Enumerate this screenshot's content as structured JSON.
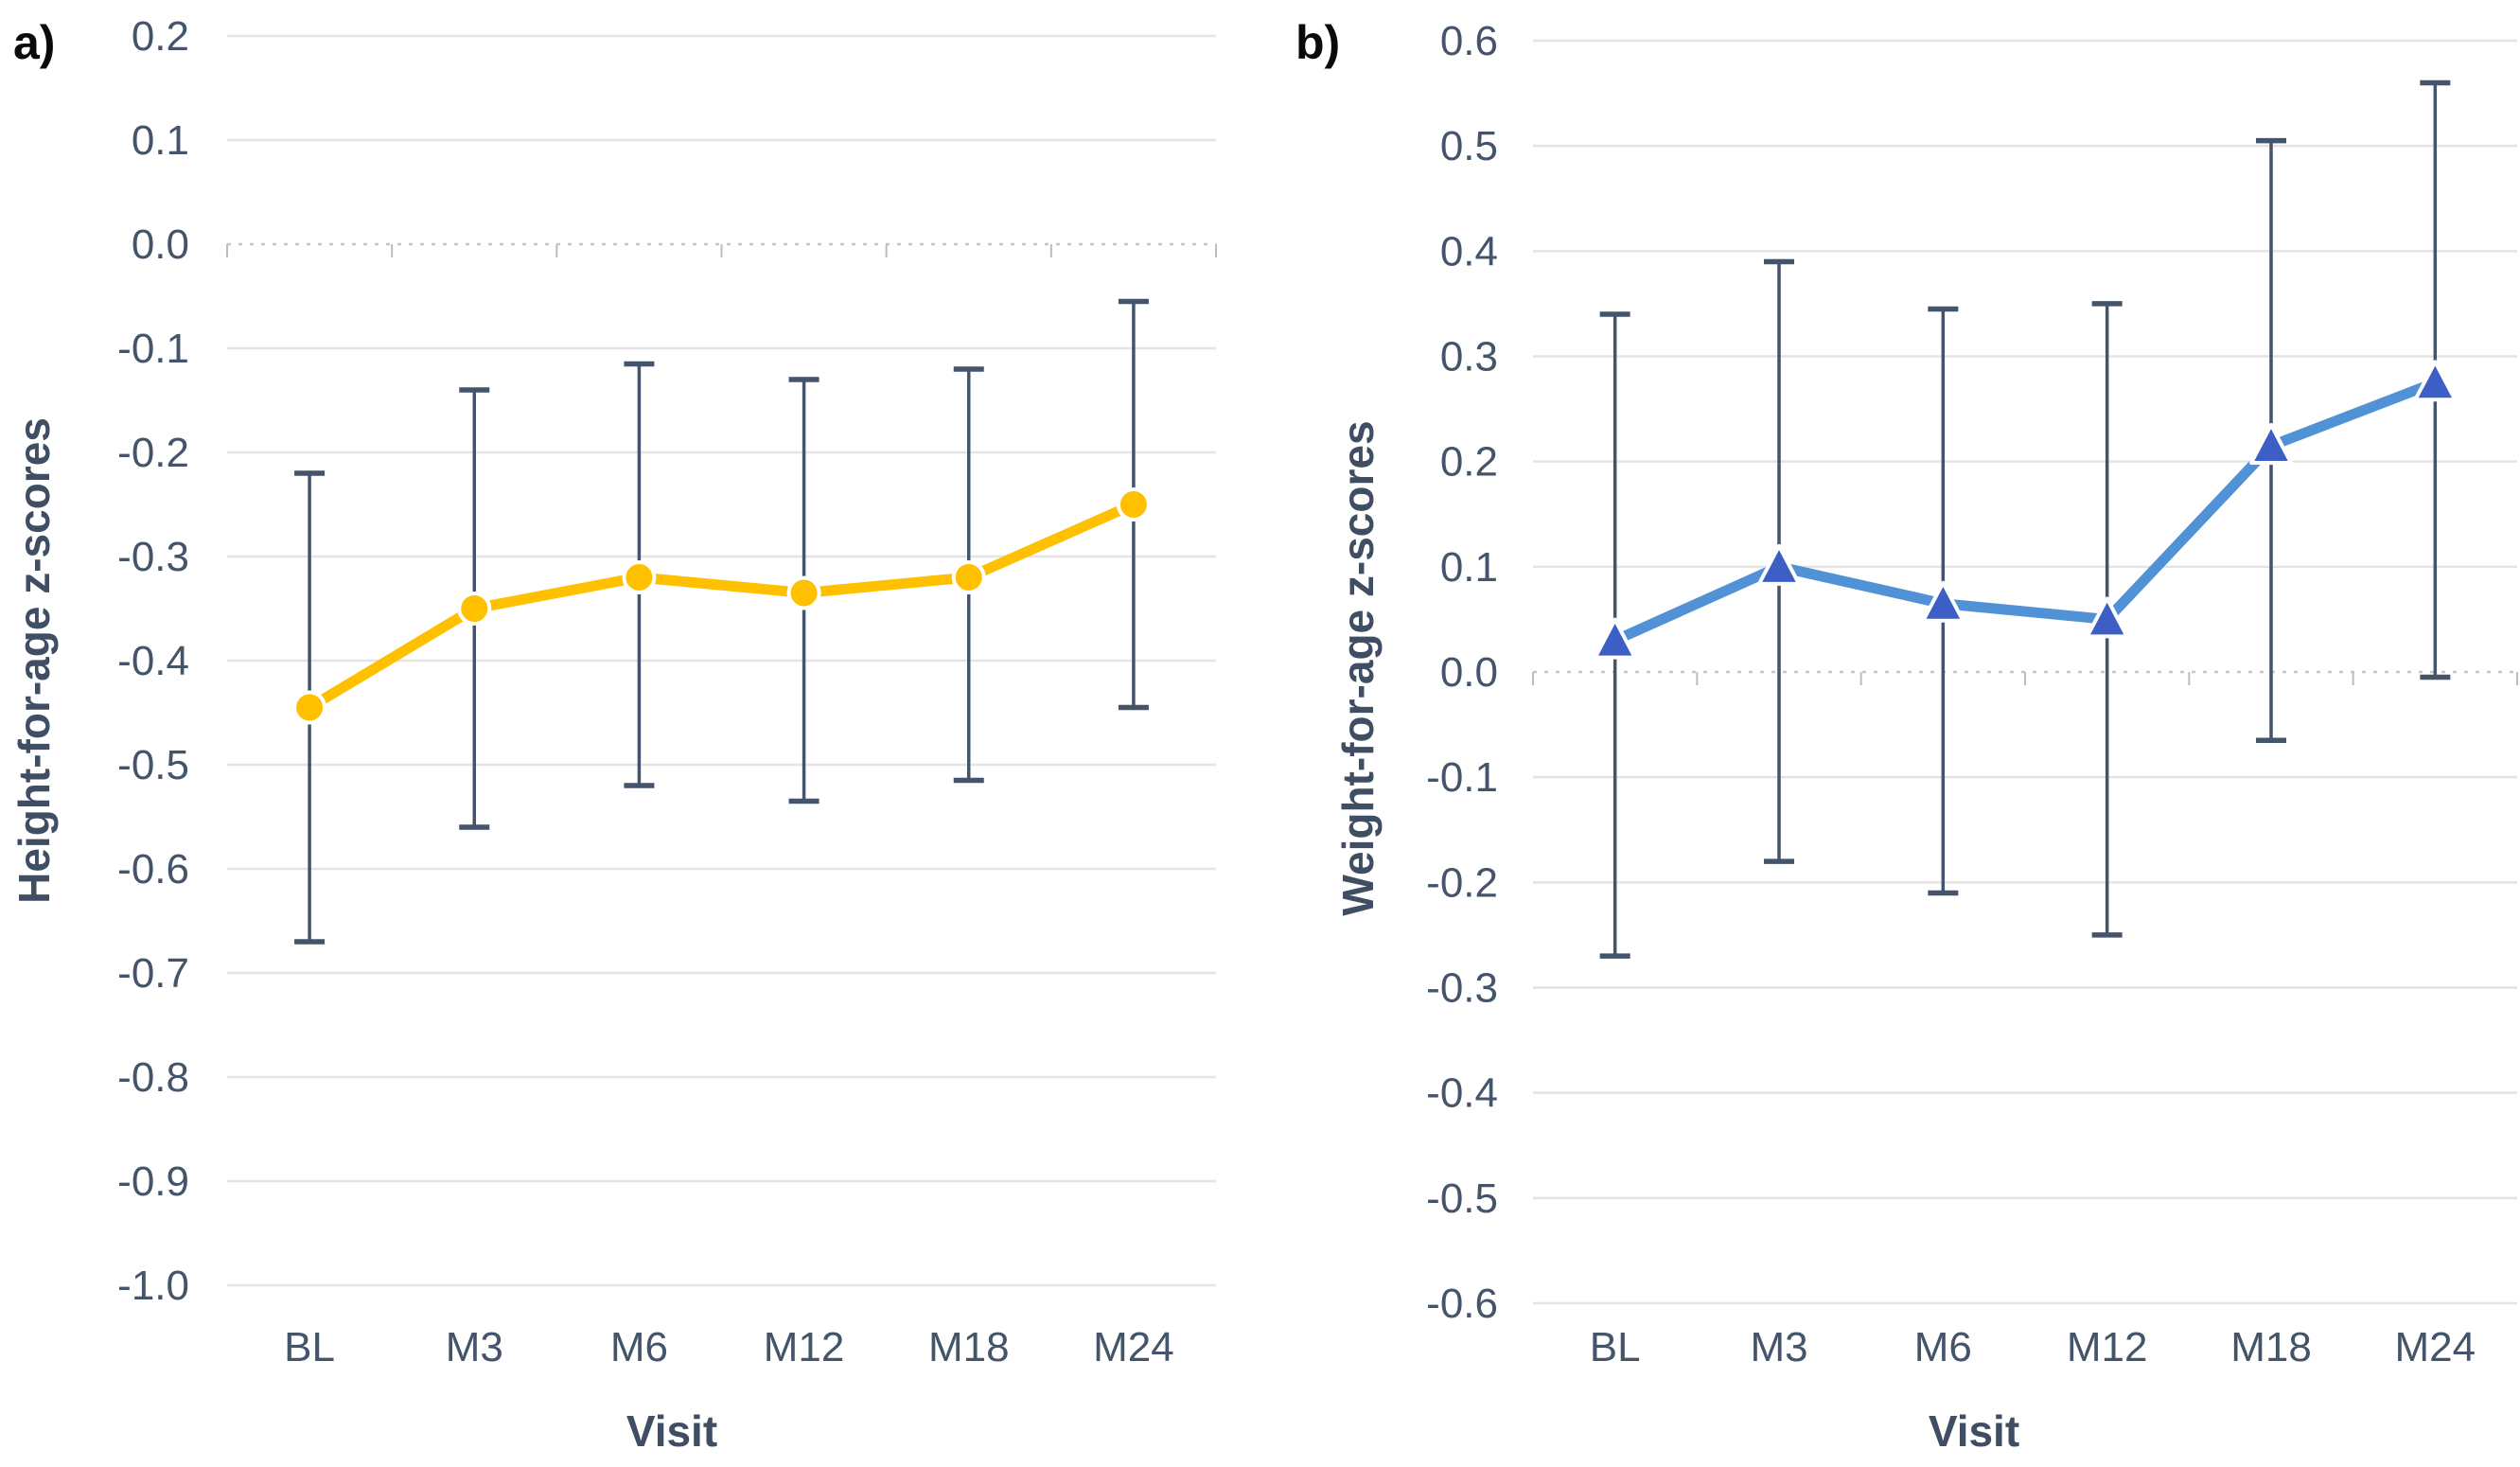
{
  "figure": {
    "description": "Two-panel line chart of growth z-scores by study visit with error bars"
  },
  "colors": {
    "background": "#FFFFFF",
    "grid": "#E4E4E4",
    "zero_line": "#C6C6C6",
    "minor_tick": "#BDBDBD",
    "error_bar": "#44546A",
    "axis_text": "#44546A",
    "axis_title_text": "#3F4E63",
    "panel_label_text": "#0A0A0A",
    "series_a_line": "#FFC000",
    "series_a_marker": "#FFC000",
    "series_b_line": "#5191D6",
    "series_b_marker": "#3C5EC5"
  },
  "chart_data": [
    {
      "panel_label": "a)",
      "type": "line",
      "title": "",
      "xlabel": "Visit",
      "ylabel": "Height-for-age z-scores",
      "categories": [
        "BL",
        "M3",
        "M6",
        "M12",
        "M18",
        "M24"
      ],
      "yticks": [
        "0.2",
        "0.1",
        "0.0",
        "-0.1",
        "-0.2",
        "-0.3",
        "-0.4",
        "-0.5",
        "-0.6",
        "-0.7",
        "-0.8",
        "-0.9",
        "-1.0"
      ],
      "ylim": [
        -1.0,
        0.2
      ],
      "grid": "horizontal",
      "zero_line_style": "dotted",
      "legend": "none",
      "series": [
        {
          "name": "Height-for-age z-score",
          "marker": "circle",
          "line_color": "#FFC000",
          "marker_color": "#FFC000",
          "values": [
            -0.445,
            -0.35,
            -0.32,
            -0.335,
            -0.32,
            -0.25
          ],
          "error_high": [
            -0.22,
            -0.14,
            -0.115,
            -0.13,
            -0.12,
            -0.055
          ],
          "error_low": [
            -0.67,
            -0.56,
            -0.52,
            -0.535,
            -0.515,
            -0.445
          ]
        }
      ]
    },
    {
      "panel_label": "b)",
      "type": "line",
      "title": "",
      "xlabel": "Visit",
      "ylabel": "Weight-for-age z-scores",
      "categories": [
        "BL",
        "M3",
        "M6",
        "M12",
        "M18",
        "M24"
      ],
      "yticks": [
        "0.6",
        "0.5",
        "0.4",
        "0.3",
        "0.2",
        "0.1",
        "0.0",
        "-0.1",
        "-0.2",
        "-0.3",
        "-0.4",
        "-0.5",
        "-0.6"
      ],
      "ylim": [
        -0.6,
        0.6
      ],
      "grid": "horizontal",
      "zero_line_style": "dotted",
      "legend": "none",
      "series": [
        {
          "name": "Weight-for-age z-score",
          "marker": "triangle",
          "line_color": "#5191D6",
          "marker_color": "#3C5EC5",
          "values": [
            0.03,
            0.1,
            0.065,
            0.05,
            0.215,
            0.275
          ],
          "error_high": [
            0.34,
            0.39,
            0.345,
            0.35,
            0.505,
            0.56
          ],
          "error_low": [
            -0.27,
            -0.18,
            -0.21,
            -0.25,
            -0.065,
            -0.005
          ]
        }
      ]
    }
  ]
}
